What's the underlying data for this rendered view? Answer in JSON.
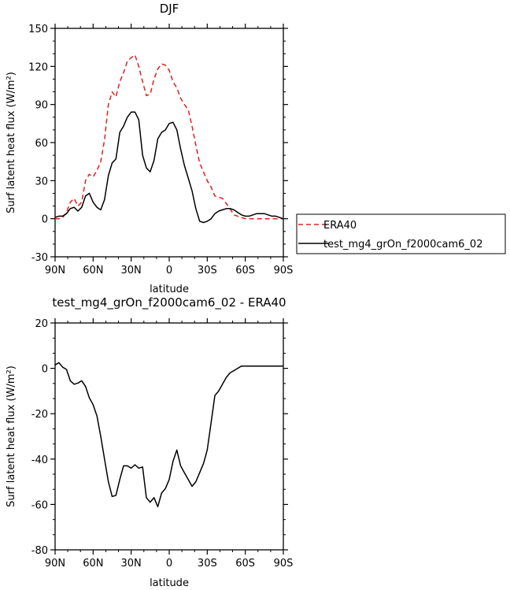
{
  "chart_data": [
    {
      "type": "line",
      "title": "DJF",
      "xlabel": "latitude",
      "ylabel": "Surf latent heat flux (W/m²)",
      "ylim": [
        -30,
        150
      ],
      "xlim": [
        90,
        -90
      ],
      "x_direction": "north-to-south",
      "yticks": [
        -30,
        0,
        30,
        60,
        90,
        120,
        150
      ],
      "xticks": [
        90,
        60,
        30,
        0,
        -30,
        -60,
        -90
      ],
      "xtick_labels": [
        "90N",
        "60N",
        "30N",
        "0",
        "30S",
        "60S",
        "90S"
      ],
      "grid": false,
      "legend_position": "right",
      "series": [
        {
          "name": "ERA40",
          "color": "#e0201b",
          "style": "dashed",
          "x": [
            90,
            87,
            84,
            81,
            78,
            75,
            72,
            69,
            66,
            63,
            60,
            57,
            54,
            51,
            48,
            45,
            42,
            39,
            36,
            33,
            30,
            27,
            24,
            21,
            18,
            15,
            12,
            9,
            6,
            3,
            0,
            -3,
            -6,
            -9,
            -12,
            -15,
            -18,
            -21,
            -24,
            -27,
            -30,
            -33,
            -36,
            -39,
            -42,
            -45,
            -48,
            -51,
            -54,
            -57,
            -60,
            -63,
            -66,
            -69,
            -72,
            -75,
            -78,
            -81,
            -84,
            -87,
            -90
          ],
          "values": [
            0,
            0,
            1,
            5,
            13,
            16,
            10,
            13,
            30,
            35,
            33,
            38,
            45,
            62,
            90,
            100,
            96,
            108,
            115,
            124,
            127,
            129,
            120,
            108,
            97,
            98,
            110,
            118,
            122,
            121,
            117,
            108,
            103,
            95,
            90,
            86,
            73,
            58,
            44,
            37,
            30,
            25,
            18,
            17,
            16,
            12,
            8,
            3,
            2,
            1,
            0,
            0,
            0,
            0,
            0,
            0,
            0,
            0,
            0,
            0,
            0
          ]
        },
        {
          "name": "test_mg4_grOn_f2000cam6_02",
          "color": "#000000",
          "style": "solid",
          "x": [
            90,
            87,
            84,
            81,
            78,
            75,
            72,
            69,
            66,
            63,
            60,
            57,
            54,
            51,
            48,
            45,
            42,
            39,
            36,
            33,
            30,
            27,
            24,
            21,
            18,
            15,
            12,
            9,
            6,
            3,
            0,
            -3,
            -6,
            -9,
            -12,
            -15,
            -18,
            -21,
            -24,
            -27,
            -30,
            -33,
            -36,
            -39,
            -42,
            -45,
            -48,
            -51,
            -54,
            -57,
            -60,
            -63,
            -66,
            -69,
            -72,
            -75,
            -78,
            -81,
            -84,
            -87,
            -90
          ],
          "values": [
            1,
            2,
            2,
            4,
            8,
            9,
            6,
            9,
            18,
            20,
            13,
            9,
            7,
            15,
            34,
            44,
            47,
            68,
            73,
            80,
            84,
            84,
            78,
            50,
            40,
            37,
            46,
            63,
            68,
            70,
            75,
            76,
            70,
            55,
            42,
            32,
            22,
            8,
            -2,
            -3,
            -2,
            0,
            4,
            6,
            7,
            8,
            8,
            7,
            5,
            3,
            2,
            2,
            3,
            4,
            4,
            4,
            3,
            2,
            2,
            1,
            0
          ]
        }
      ]
    },
    {
      "type": "line",
      "title": "test_mg4_grOn_f2000cam6_02 - ERA40",
      "xlabel": "latitude",
      "ylabel": "Surf latent heat flux (W/m²)",
      "ylim": [
        -80,
        20
      ],
      "xlim": [
        90,
        -90
      ],
      "yticks": [
        -80,
        -60,
        -40,
        -20,
        0,
        20
      ],
      "xticks": [
        90,
        60,
        30,
        0,
        -30,
        -60,
        -90
      ],
      "xtick_labels": [
        "90N",
        "60N",
        "30N",
        "0",
        "30S",
        "60S",
        "90S"
      ],
      "grid": false,
      "series": [
        {
          "color": "#000000",
          "style": "solid",
          "x": [
            90,
            87,
            84,
            81,
            78,
            75,
            72,
            69,
            66,
            63,
            60,
            57,
            54,
            51,
            48,
            45,
            42,
            39,
            36,
            33,
            30,
            27,
            24,
            21,
            18,
            15,
            12,
            9,
            6,
            3,
            0,
            -3,
            -6,
            -9,
            -12,
            -15,
            -18,
            -21,
            -24,
            -27,
            -30,
            -33,
            -36,
            -39,
            -42,
            -45,
            -48,
            -51,
            -54,
            -57,
            -60,
            -63,
            -66,
            -69,
            -72,
            -75,
            -78,
            -81,
            -84,
            -87,
            -90
          ],
          "values": [
            1.5,
            2.5,
            0.5,
            -0.5,
            -5.5,
            -7,
            -6.5,
            -5.5,
            -8,
            -13,
            -16,
            -21,
            -30,
            -40,
            -50,
            -56.5,
            -56,
            -49,
            -43,
            -43,
            -44,
            -42.5,
            -44,
            -43.5,
            -57,
            -59,
            -57,
            -61,
            -55,
            -53,
            -49,
            -41,
            -36,
            -43,
            -46,
            -49,
            -52,
            -50,
            -46,
            -42,
            -36,
            -24,
            -12,
            -10,
            -7,
            -4,
            -2,
            -1,
            0,
            1,
            1,
            1,
            1,
            1,
            1,
            1,
            1,
            1,
            1,
            1,
            1
          ]
        }
      ]
    }
  ],
  "legend": {
    "entries": [
      "ERA40",
      "test_mg4_grOn_f2000cam6_02"
    ]
  }
}
